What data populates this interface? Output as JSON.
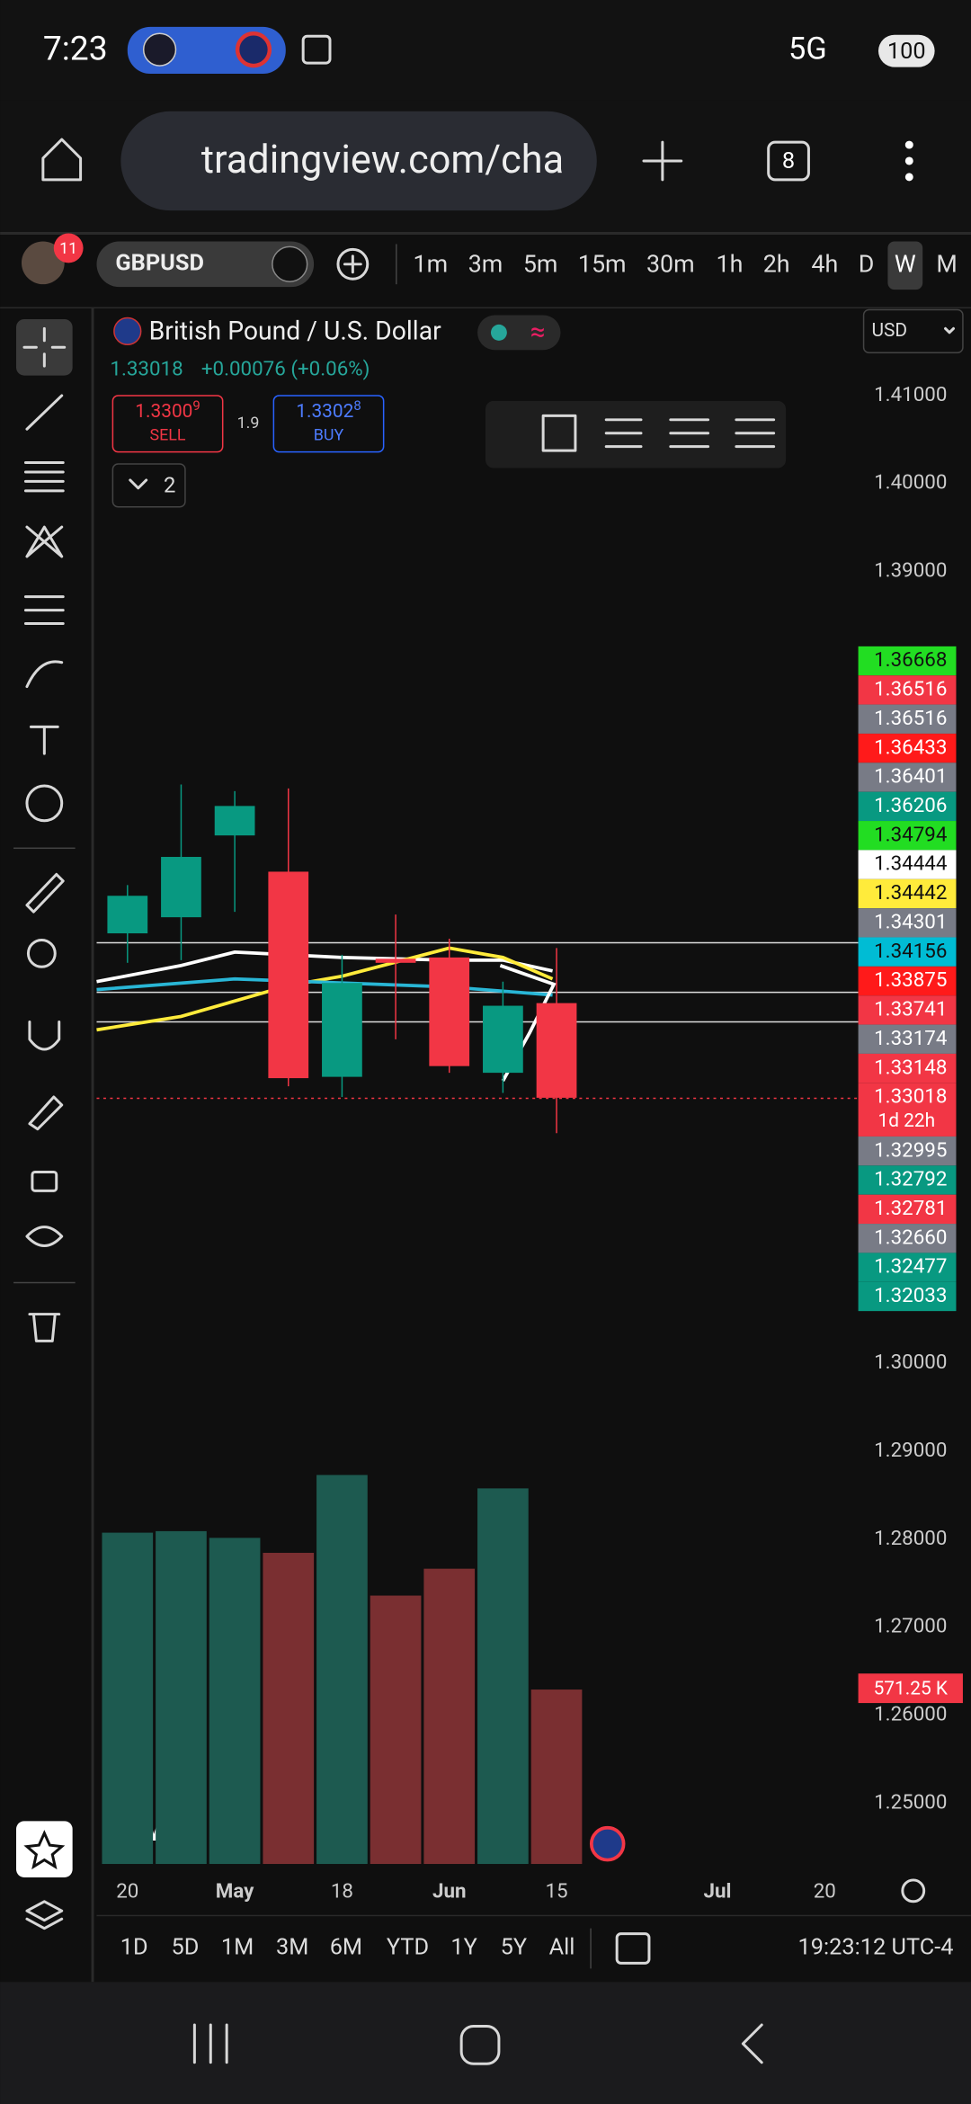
{
  "status": {
    "time": "7:23",
    "network": "5G",
    "battery": "100"
  },
  "browser": {
    "url": "tradingview.com/cha",
    "tabs": "8"
  },
  "toolbar": {
    "symbol": "GBPUSD",
    "badge": "11",
    "intervals": [
      "1m",
      "3m",
      "5m",
      "15m",
      "30m",
      "1h",
      "2h",
      "4h",
      "D",
      "W",
      "M"
    ],
    "active": "W"
  },
  "header": {
    "title": "British Pound / U.S. Dollar",
    "currency": "USD",
    "quote": "1.33018",
    "change": "+0.00076 (+0.06%)",
    "sell": {
      "main": "1.3300",
      "sup": "9",
      "label": "SELL"
    },
    "spread": "1.9",
    "buy": {
      "main": "1.3302",
      "sup": "8",
      "label": "BUY"
    },
    "collapsed": "2"
  },
  "chart": {
    "type": "candlestick",
    "open": [
      1.34887,
      1.3507,
      1.36,
      1.35588,
      1.33256,
      1.34598,
      1.34613,
      1.33302,
      1.34094
    ],
    "high": [
      1.35436,
      1.36579,
      1.36503,
      1.36534,
      1.34643,
      1.35101,
      1.34826,
      1.34338,
      1.3472
    ],
    "low": [
      1.34552,
      1.34582,
      1.35131,
      1.33149,
      1.33027,
      1.33683,
      1.33302,
      1.33073,
      1.32616
    ],
    "close": [
      1.35314,
      1.35756,
      1.36335,
      1.33241,
      1.34323,
      1.34552,
      1.33378,
      1.34064,
      1.33018
    ],
    "volume": [
      1085000,
      1090000,
      1068000,
      1019000,
      1274000,
      879000,
      967000,
      1230000,
      571250
    ],
    "volume_value_labels": [
      null,
      null,
      null,
      null,
      null,
      null,
      null,
      null,
      "571.25 K"
    ],
    "up_color": "#089981",
    "down_color": "#f23645",
    "volume_up_color": "#1d5a50",
    "volume_down_color": "#7a2f31",
    "ylim": [
      1.24232,
      1.41564
    ],
    "volume_lim": [
      0,
      1300000
    ],
    "yticks": [
      {
        "value": 1.41,
        "label": "1.41000"
      },
      {
        "value": 1.4,
        "label": "1.40000"
      },
      {
        "value": 1.39,
        "label": "1.39000"
      },
      {
        "value": 1.3,
        "label": "1.30000"
      },
      {
        "value": 1.29,
        "label": "1.29000"
      },
      {
        "value": 1.28,
        "label": "1.28000"
      },
      {
        "value": 1.27,
        "label": "1.27000"
      },
      {
        "value": 1.26,
        "label": "1.26000"
      },
      {
        "value": 1.25,
        "label": "1.25000"
      }
    ],
    "x_labels": [
      "20",
      "May",
      "18",
      "Jun",
      "15",
      "Jul",
      "20"
    ],
    "last_countdown": "1d 22h",
    "price_labels": [
      {
        "label": "1.36668",
        "bg": "#22dd22",
        "fg": "#111"
      },
      {
        "label": "1.36516",
        "bg": "#f23645",
        "fg": "#fff"
      },
      {
        "label": "1.36516",
        "bg": "#787b86",
        "fg": "#fff"
      },
      {
        "label": "1.36433",
        "bg": "#ff1a1a",
        "fg": "#fff"
      },
      {
        "label": "1.36401",
        "bg": "#787b86",
        "fg": "#fff"
      },
      {
        "label": "1.36206",
        "bg": "#089981",
        "fg": "#fff"
      },
      {
        "label": "1.34794",
        "bg": "#22dd22",
        "fg": "#111"
      },
      {
        "label": "1.34444",
        "bg": "#ffffff",
        "fg": "#111"
      },
      {
        "label": "1.34442",
        "bg": "#ffeb3b",
        "fg": "#111"
      },
      {
        "label": "1.34301",
        "bg": "#787b86",
        "fg": "#fff"
      },
      {
        "label": "1.34156",
        "bg": "#00bcd4",
        "fg": "#111"
      },
      {
        "label": "1.33875",
        "bg": "#ff1a1a",
        "fg": "#fff"
      },
      {
        "label": "1.33741",
        "bg": "#f23645",
        "fg": "#fff"
      },
      {
        "label": "1.33174",
        "bg": "#787b86",
        "fg": "#fff"
      },
      {
        "label": "1.33148",
        "bg": "#f23645",
        "fg": "#fff"
      },
      {
        "label": "1.33018",
        "bg": "#f23645",
        "fg": "#fff"
      },
      {
        "label": "1.32995",
        "bg": "#787b86",
        "fg": "#fff"
      },
      {
        "label": "1.32792",
        "bg": "#089981",
        "fg": "#fff"
      },
      {
        "label": "1.32781",
        "bg": "#f23645",
        "fg": "#fff"
      },
      {
        "label": "1.32660",
        "bg": "#787b86",
        "fg": "#fff"
      },
      {
        "label": "1.32477",
        "bg": "#089981",
        "fg": "#fff"
      },
      {
        "label": "1.32033",
        "bg": "#089981",
        "fg": "#fff"
      }
    ]
  },
  "footer": {
    "ranges": [
      "1D",
      "5D",
      "1M",
      "3M",
      "6M",
      "YTD",
      "1Y",
      "5Y",
      "All"
    ],
    "clock": "19:23:12 UTC-4"
  }
}
